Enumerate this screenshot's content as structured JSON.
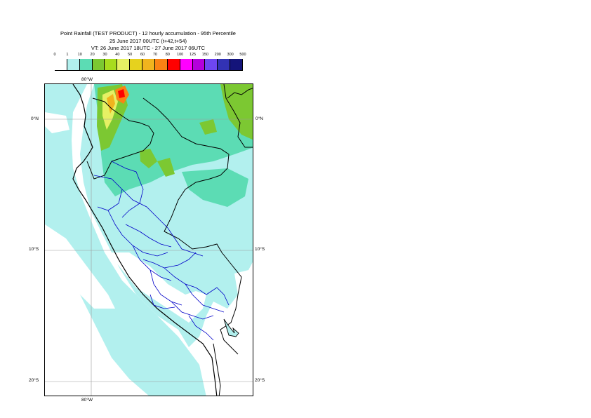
{
  "title": {
    "line1": "Point Rainfall (TEST PRODUCT) - 12 hourly accumulation - 95th Percentile",
    "line2": "25 June 2017 00UTC (t+42,t+54)",
    "line3": "VT: 26 June 2017 18UTC - 27 June 2017 06UTC"
  },
  "colorbar": {
    "thresholds": [
      "0",
      "1",
      "10",
      "20",
      "30",
      "40",
      "50",
      "60",
      "70",
      "80",
      "100",
      "125",
      "150",
      "200",
      "300",
      "500"
    ],
    "colors": [
      "#ffffff",
      "#b2f0ee",
      "#5cdcb4",
      "#7cc832",
      "#a8dc1e",
      "#e6f064",
      "#e6d21e",
      "#f0b41e",
      "#fa8214",
      "#ff0000",
      "#ff00ff",
      "#b400dc",
      "#6e46f0",
      "#3232b4",
      "#14147a"
    ]
  },
  "map": {
    "lon_labels": {
      "top": "80°W",
      "bottom": "80°W"
    },
    "lat_labels": {
      "north": "0°N",
      "mid": "10°S",
      "south": "20°S"
    },
    "colors": {
      "land_fill": "#b2f0ee",
      "border_country": "#000000",
      "border_region": "#0000c8",
      "gridline": "#9a9a9a"
    }
  }
}
